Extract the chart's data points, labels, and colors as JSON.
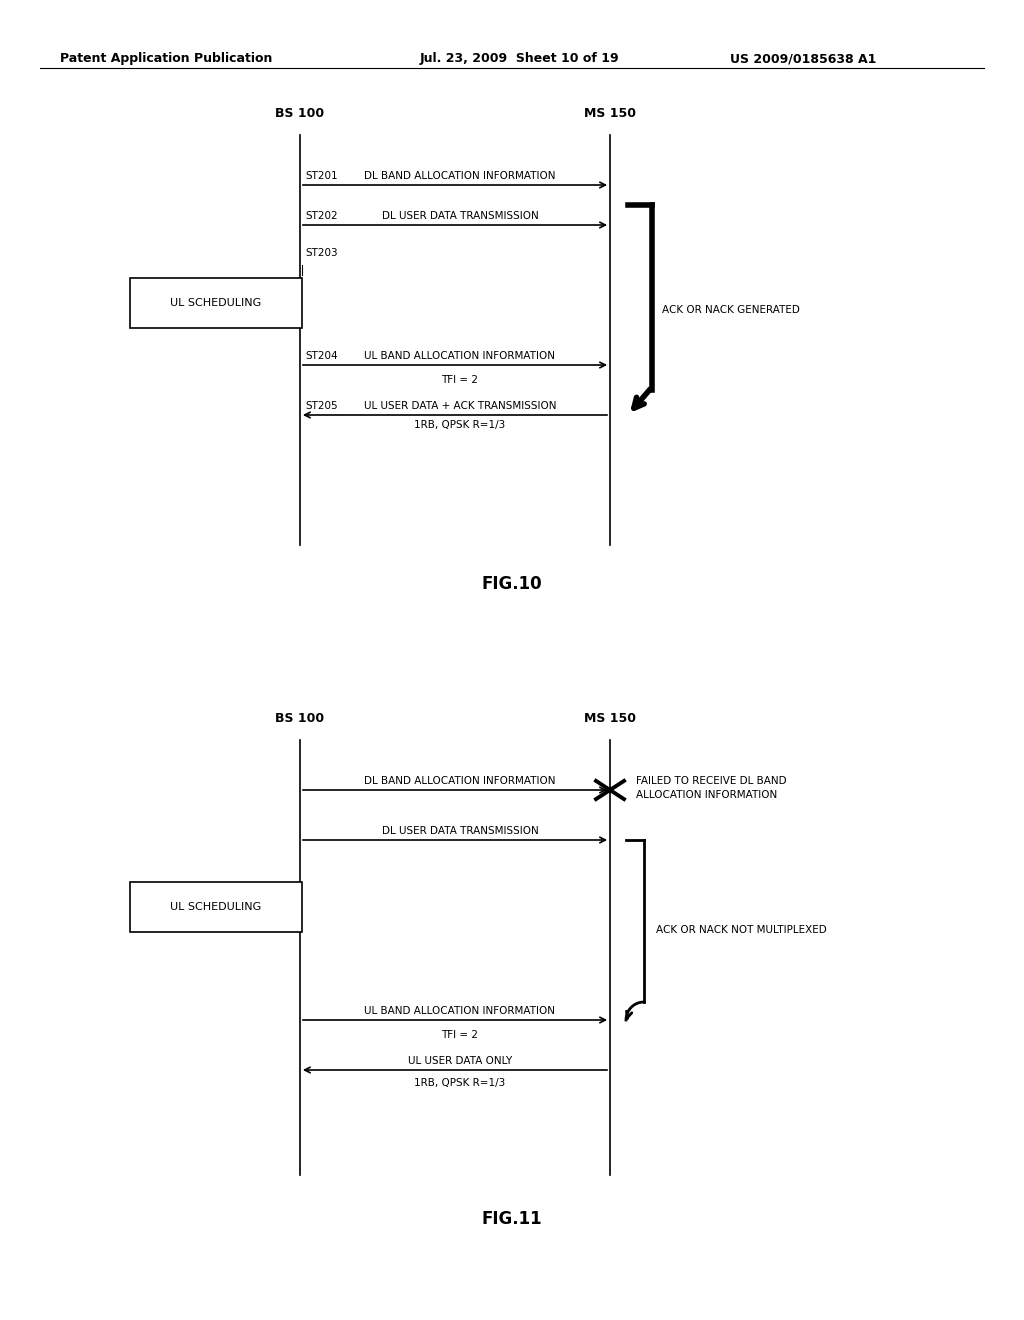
{
  "bg_color": "#ffffff",
  "text_color": "#000000",
  "header_text_left": "Patent Application Publication",
  "header_text_mid": "Jul. 23, 2009  Sheet 10 of 19",
  "header_text_right": "US 2009/0185638 A1",
  "fig10_title": "FIG.10",
  "fig11_title": "FIG.11",
  "bs_label": "BS 100",
  "ms_label": "MS 150"
}
